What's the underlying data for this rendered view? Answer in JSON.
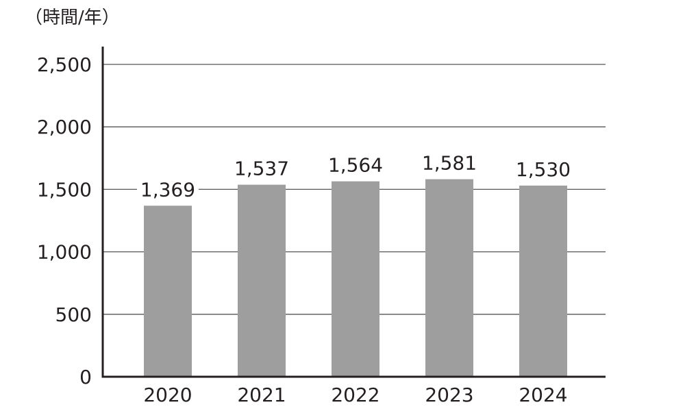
{
  "chart_data": {
    "type": "bar",
    "unit_label": "（時間/年）",
    "categories": [
      "2020",
      "2021",
      "2022",
      "2023",
      "2024"
    ],
    "values": [
      1369,
      1537,
      1564,
      1581,
      1530
    ],
    "value_labels": [
      "1,369",
      "1,537",
      "1,564",
      "1,581",
      "1,530"
    ],
    "yticks": [
      0,
      500,
      1000,
      1500,
      2000,
      2500
    ],
    "ytick_labels": [
      "0",
      "500",
      "1,000",
      "1,500",
      "2,000",
      "2,500"
    ],
    "ylim": [
      0,
      2500
    ],
    "grid": true,
    "bar_color": "#9e9e9e",
    "axis_color": "#231f20",
    "grid_color": "#555555"
  }
}
